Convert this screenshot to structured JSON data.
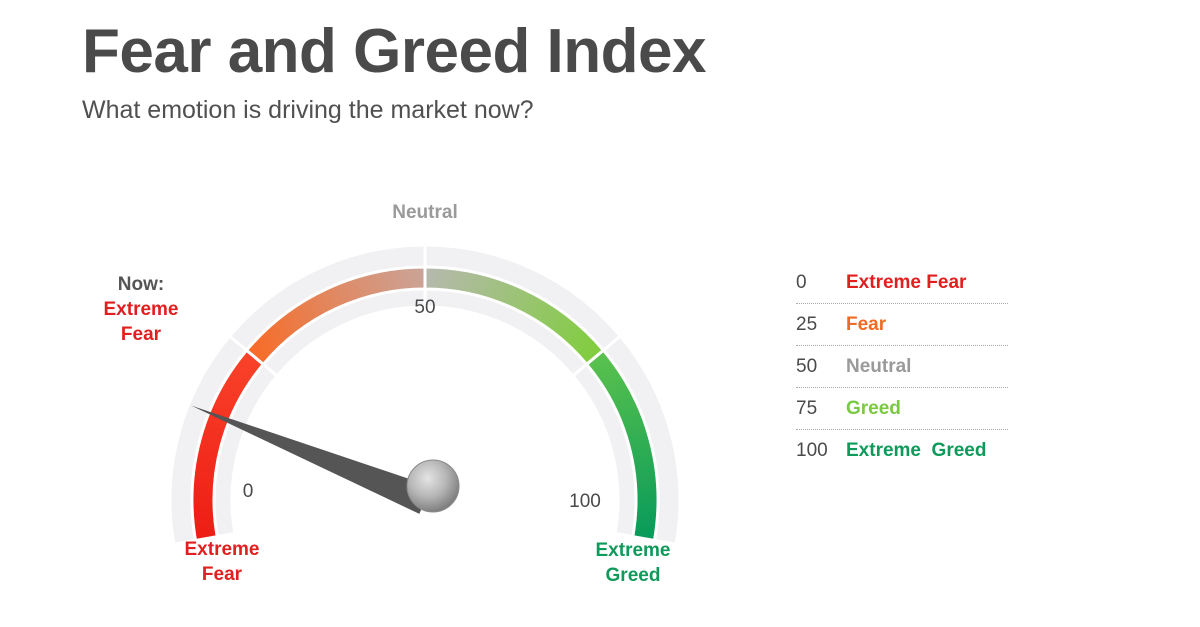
{
  "header": {
    "title": "Fear and Greed Index",
    "subtitle": "What emotion is driving the market now?"
  },
  "chart_data": {
    "type": "gauge",
    "title": "Fear and Greed Index",
    "subtitle": "What emotion is driving the market now?",
    "range": [
      0,
      100
    ],
    "value": 16,
    "current_label_prefix": "Now:",
    "current_label": "Extreme Fear",
    "tick_labels": [
      {
        "value": 0,
        "text": "0"
      },
      {
        "value": 50,
        "text": "50"
      },
      {
        "value": 100,
        "text": "100"
      }
    ],
    "outer_labels": [
      {
        "value": 0,
        "text": "Extreme Fear",
        "color": "#e02020"
      },
      {
        "value": 50,
        "text": "Neutral",
        "color": "#9a9a9a"
      },
      {
        "value": 100,
        "text": "Extreme Greed",
        "color": "#0e9a5a"
      }
    ],
    "zones": [
      {
        "from": 0,
        "to": 25,
        "label": "Extreme Fear",
        "colors": [
          "#ee1c14",
          "#f9432a"
        ]
      },
      {
        "from": 25,
        "to": 50,
        "label": "Fear",
        "colors": [
          "#f96a25",
          "#c9a59a"
        ]
      },
      {
        "from": 50,
        "to": 75,
        "label": "Neutral",
        "colors": [
          "#b7b8b0",
          "#7fce3a"
        ]
      },
      {
        "from": 75,
        "to": 100,
        "label": "Greed",
        "colors": [
          "#5cc24d",
          "#069a5a"
        ]
      }
    ],
    "legend": [
      {
        "value": "0",
        "label": "Extreme Fear",
        "color": "#e02020"
      },
      {
        "value": "25",
        "label": "Fear",
        "color": "#f26a21"
      },
      {
        "value": "50",
        "label": "Neutral",
        "color": "#9a9a9a"
      },
      {
        "value": "75",
        "label": "Greed",
        "color": "#7ac943"
      },
      {
        "value": "100",
        "label": "Extreme  Greed",
        "color": "#0e9a5a"
      }
    ]
  }
}
